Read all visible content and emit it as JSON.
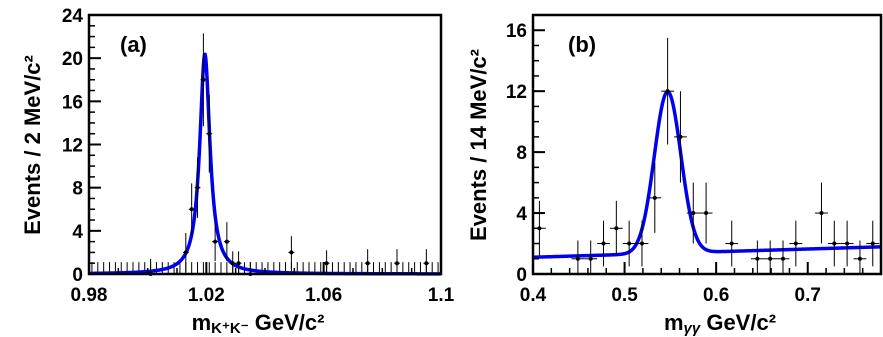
{
  "chart_data": [
    {
      "type": "scatter",
      "panel_label": "(a)",
      "ylabel": "Events / 2 MeV/c²",
      "xlabel_parts": {
        "main": "m",
        "sub": "K⁺K⁻",
        "unit": " GeV/c²"
      },
      "xlim": [
        0.98,
        1.1
      ],
      "ylim": [
        0,
        24
      ],
      "xticks": [
        0.98,
        1.02,
        1.06,
        1.1
      ],
      "xtick_labels": [
        "0.98",
        "1.02",
        "1.06",
        "1.1"
      ],
      "yticks": [
        0,
        4,
        8,
        12,
        16,
        20,
        24
      ],
      "ytick_labels": [
        "0",
        "4",
        "8",
        "12",
        "16",
        "20",
        "24"
      ],
      "bin_width": 0.002,
      "points": [
        {
          "x": 1.001,
          "y": 0,
          "err": 1.4
        },
        {
          "x": 1.013,
          "y": 2,
          "err": 1.8
        },
        {
          "x": 1.015,
          "y": 6,
          "err": 2.4
        },
        {
          "x": 1.017,
          "y": 8,
          "err": 2.8
        },
        {
          "x": 1.019,
          "y": 18,
          "err": 4.3
        },
        {
          "x": 1.021,
          "y": 13,
          "err": 3.6
        },
        {
          "x": 1.023,
          "y": 3,
          "err": 1.8
        },
        {
          "x": 1.027,
          "y": 3,
          "err": 1.8
        },
        {
          "x": 1.029,
          "y": 1,
          "err": 1.1
        },
        {
          "x": 1.031,
          "y": 1,
          "err": 1.1
        },
        {
          "x": 1.035,
          "y": 0,
          "err": 1.1
        },
        {
          "x": 1.049,
          "y": 2,
          "err": 1.5
        },
        {
          "x": 1.061,
          "y": 1,
          "err": 1.2
        },
        {
          "x": 1.075,
          "y": 1,
          "err": 1.3
        },
        {
          "x": 1.085,
          "y": 1,
          "err": 1.3
        },
        {
          "x": 1.095,
          "y": 1,
          "err": 1.3
        }
      ],
      "fit": {
        "model": "lorentzian",
        "mean": 1.0195,
        "width": 0.0042,
        "amplitude": 20.4,
        "background": 0
      }
    },
    {
      "type": "scatter",
      "panel_label": "(b)",
      "ylabel": "Events / 14 MeV/c²",
      "xlabel_parts": {
        "main": "m",
        "sub": "γγ",
        "unit": "  GeV/c²"
      },
      "xlim": [
        0.4,
        0.78
      ],
      "ylim": [
        0,
        17
      ],
      "xticks": [
        0.4,
        0.5,
        0.6,
        0.7
      ],
      "xtick_labels": [
        "0.4",
        "0.5",
        "0.6",
        "0.7"
      ],
      "yticks": [
        0,
        4,
        8,
        12,
        16
      ],
      "ytick_labels": [
        "0",
        "4",
        "8",
        "12",
        "16"
      ],
      "bin_width": 0.014,
      "points": [
        {
          "x": 0.407,
          "y": 3,
          "err": 1.8
        },
        {
          "x": 0.449,
          "y": 1,
          "err": 1.2
        },
        {
          "x": 0.463,
          "y": 1,
          "err": 1.2
        },
        {
          "x": 0.477,
          "y": 2,
          "err": 1.5
        },
        {
          "x": 0.491,
          "y": 3,
          "err": 1.8
        },
        {
          "x": 0.505,
          "y": 2,
          "err": 1.5
        },
        {
          "x": 0.519,
          "y": 2,
          "err": 1.5
        },
        {
          "x": 0.533,
          "y": 5,
          "err": 2.3
        },
        {
          "x": 0.547,
          "y": 12,
          "err": 3.5
        },
        {
          "x": 0.561,
          "y": 9,
          "err": 3.0
        },
        {
          "x": 0.575,
          "y": 4,
          "err": 2.0
        },
        {
          "x": 0.589,
          "y": 4,
          "err": 2.0
        },
        {
          "x": 0.617,
          "y": 2,
          "err": 1.5
        },
        {
          "x": 0.645,
          "y": 1,
          "err": 1.2
        },
        {
          "x": 0.659,
          "y": 1,
          "err": 1.2
        },
        {
          "x": 0.673,
          "y": 1,
          "err": 1.2
        },
        {
          "x": 0.687,
          "y": 2,
          "err": 1.5
        },
        {
          "x": 0.715,
          "y": 4,
          "err": 2.0
        },
        {
          "x": 0.729,
          "y": 2,
          "err": 1.5
        },
        {
          "x": 0.743,
          "y": 2,
          "err": 1.5
        },
        {
          "x": 0.757,
          "y": 1,
          "err": 1.2
        },
        {
          "x": 0.771,
          "y": 2,
          "err": 1.5
        }
      ],
      "fit": {
        "model": "gaussian_plus_linear",
        "mean": 0.547,
        "sigma": 0.0145,
        "amplitude": 10.6,
        "bkg_at_xmin": 1.1,
        "bkg_slope_per_gev": 1.8
      }
    }
  ]
}
